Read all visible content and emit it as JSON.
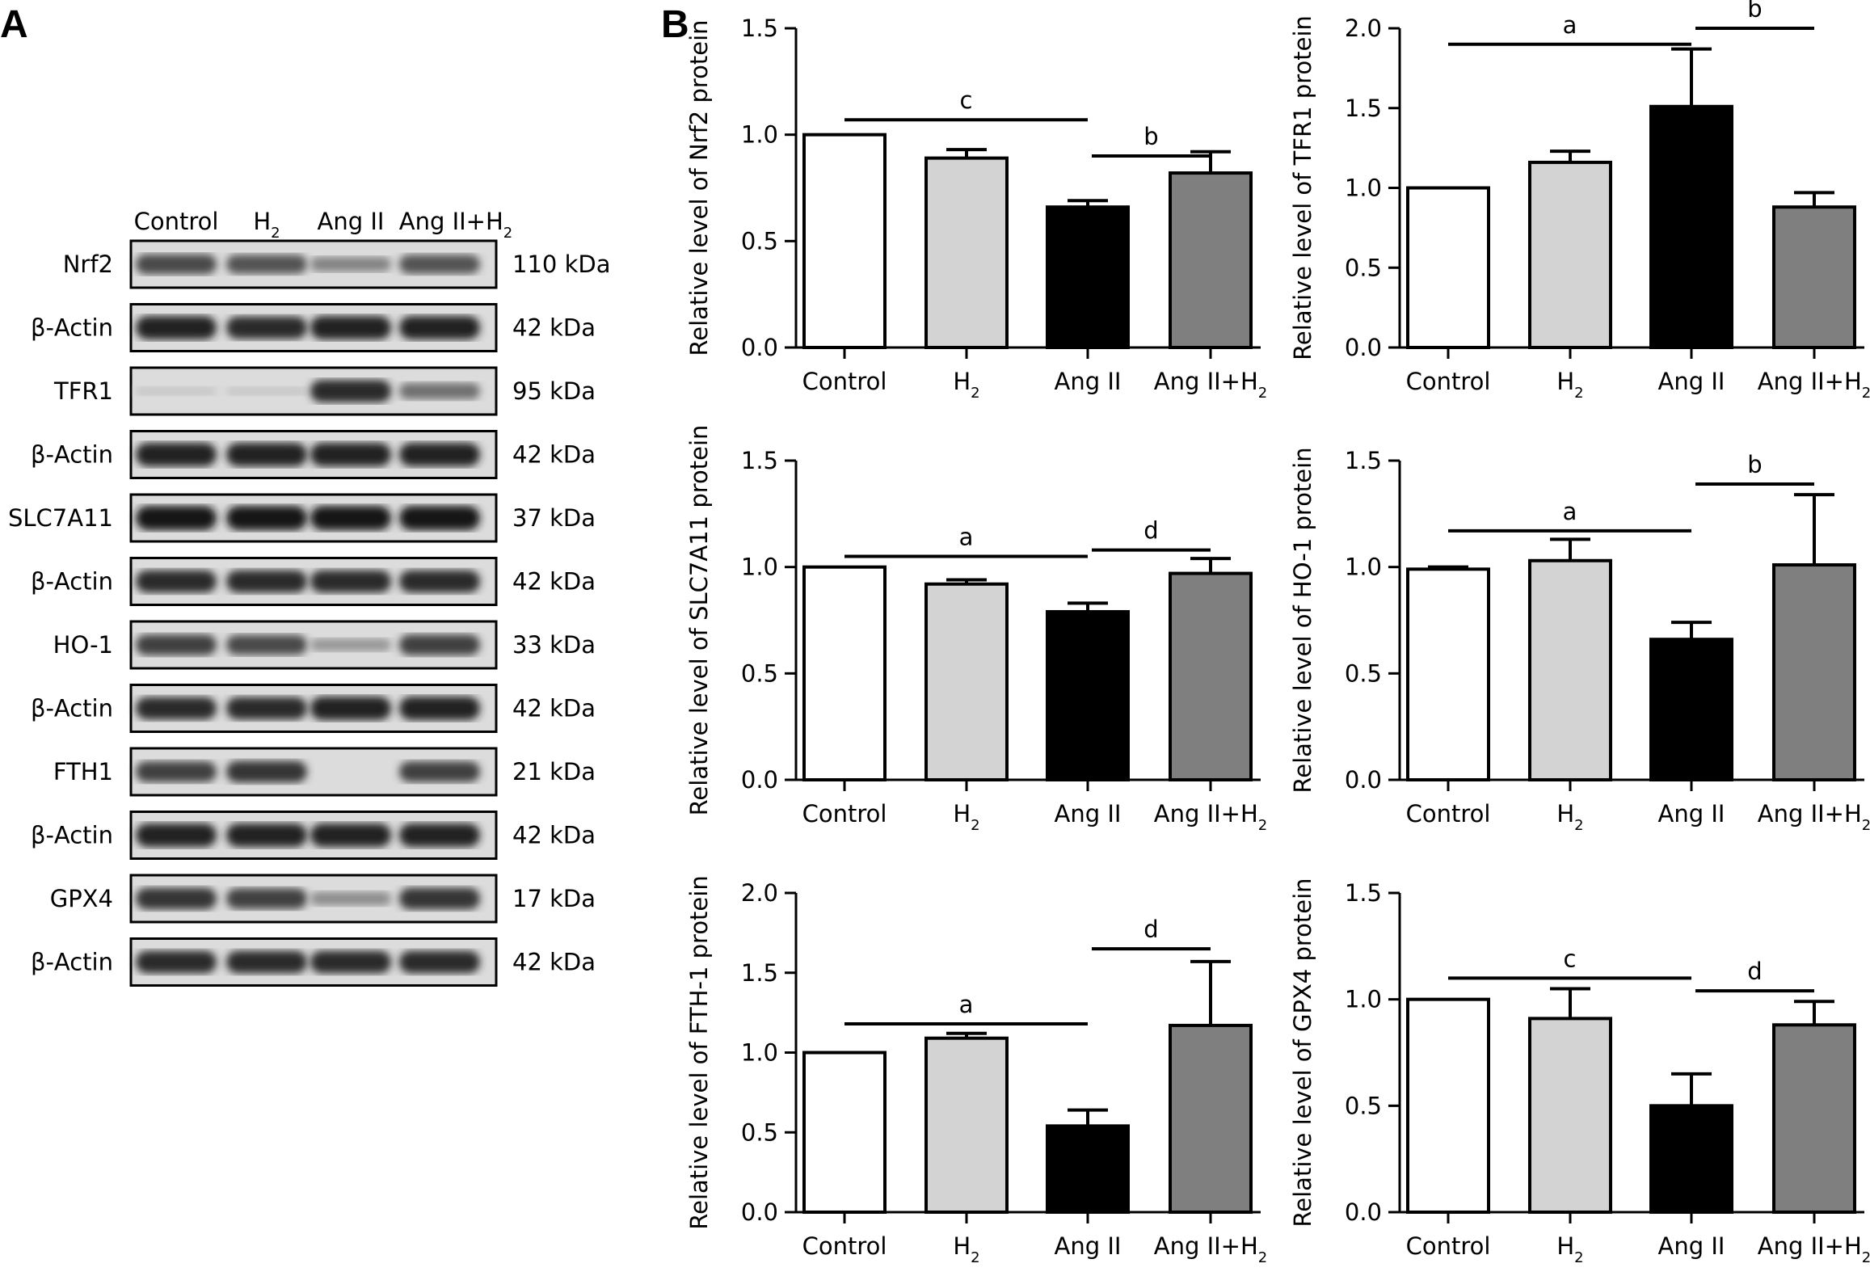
{
  "panels": {
    "a": "A",
    "b": "B"
  },
  "western_blot": {
    "lanes": [
      "Control",
      "H",
      "Ang II",
      "Ang II+H"
    ],
    "lane_subscripts": [
      "",
      "2",
      "",
      "2"
    ],
    "rows": [
      {
        "protein": "Nrf2",
        "kda": "110 kDa",
        "bands": [
          0.75,
          0.7,
          0.45,
          0.7
        ]
      },
      {
        "protein": "β-Actin",
        "kda": "42 kDa",
        "bands": [
          0.95,
          0.9,
          0.95,
          0.95
        ]
      },
      {
        "protein": "TFR1",
        "kda": "95 kDa",
        "bands": [
          0.1,
          0.1,
          0.9,
          0.55
        ]
      },
      {
        "protein": "β-Actin",
        "kda": "42 kDa",
        "bands": [
          0.95,
          0.95,
          0.95,
          0.95
        ]
      },
      {
        "protein": "SLC7A11",
        "kda": "37 kDa",
        "bands": [
          1.0,
          1.0,
          1.0,
          1.0
        ]
      },
      {
        "protein": "β-Actin",
        "kda": "42 kDa",
        "bands": [
          0.9,
          0.9,
          0.9,
          0.9
        ]
      },
      {
        "protein": "HO-1",
        "kda": "33 kDa",
        "bands": [
          0.8,
          0.75,
          0.35,
          0.8
        ]
      },
      {
        "protein": "β-Actin",
        "kda": "42 kDa",
        "bands": [
          0.9,
          0.9,
          0.95,
          0.95
        ]
      },
      {
        "protein": "FTH1",
        "kda": "21 kDa",
        "bands": [
          0.8,
          0.85,
          0.05,
          0.8
        ]
      },
      {
        "protein": "β-Actin",
        "kda": "42 kDa",
        "bands": [
          0.95,
          0.95,
          0.95,
          0.95
        ]
      },
      {
        "protein": "GPX4",
        "kda": "17 kDa",
        "bands": [
          0.85,
          0.8,
          0.4,
          0.85
        ]
      },
      {
        "protein": "β-Actin",
        "kda": "42 kDa",
        "bands": [
          0.9,
          0.9,
          0.9,
          0.9
        ]
      }
    ]
  },
  "colors": {
    "control": "#ffffff",
    "h2": "#d3d3d3",
    "angii": "#000000",
    "angii_h2": "#7f7f7f"
  },
  "chart_data": [
    {
      "type": "bar",
      "ylabel": "Relative level of Nrf2 protein",
      "categories": [
        "Control",
        "H",
        "Ang II",
        "Ang II+H"
      ],
      "category_subscripts": [
        "",
        "2",
        "",
        "2"
      ],
      "values": [
        1.0,
        0.89,
        0.66,
        0.82
      ],
      "errors": [
        0.0,
        0.04,
        0.03,
        0.1
      ],
      "ylim": [
        0,
        1.5
      ],
      "yticks": [
        "0.0",
        "0.5",
        "1.0",
        "1.5"
      ],
      "significance": [
        {
          "label": "c",
          "from": 0,
          "to": 2,
          "y": 1.07
        },
        {
          "label": "b",
          "from": 2,
          "to": 3,
          "y": 0.9
        }
      ]
    },
    {
      "type": "bar",
      "ylabel": "Relative level of TFR1 protein",
      "categories": [
        "Control",
        "H",
        "Ang II",
        "Ang II+H"
      ],
      "category_subscripts": [
        "",
        "2",
        "",
        "2"
      ],
      "values": [
        1.0,
        1.16,
        1.51,
        0.88
      ],
      "errors": [
        0.0,
        0.07,
        0.36,
        0.09
      ],
      "ylim": [
        0,
        2.0
      ],
      "yticks": [
        "0.0",
        "0.5",
        "1.0",
        "1.5",
        "2.0"
      ],
      "significance": [
        {
          "label": "a",
          "from": 0,
          "to": 2,
          "y": 1.9
        },
        {
          "label": "b",
          "from": 2,
          "to": 3,
          "y": 2.0
        }
      ]
    },
    {
      "type": "bar",
      "ylabel": "Relative level of SLC7A11 protein",
      "categories": [
        "Control",
        "H",
        "Ang II",
        "Ang II+H"
      ],
      "category_subscripts": [
        "",
        "2",
        "",
        "2"
      ],
      "values": [
        1.0,
        0.92,
        0.79,
        0.97
      ],
      "errors": [
        0.0,
        0.02,
        0.04,
        0.07
      ],
      "ylim": [
        0,
        1.5
      ],
      "yticks": [
        "0.0",
        "0.5",
        "1.0",
        "1.5"
      ],
      "significance": [
        {
          "label": "a",
          "from": 0,
          "to": 2,
          "y": 1.05
        },
        {
          "label": "d",
          "from": 2,
          "to": 3,
          "y": 1.08
        }
      ]
    },
    {
      "type": "bar",
      "ylabel": "Relative level of HO-1 protein",
      "categories": [
        "Control",
        "H",
        "Ang II",
        "Ang II+H"
      ],
      "category_subscripts": [
        "",
        "2",
        "",
        "2"
      ],
      "values": [
        0.99,
        1.03,
        0.66,
        1.01
      ],
      "errors": [
        0.01,
        0.1,
        0.08,
        0.33
      ],
      "ylim": [
        0,
        1.5
      ],
      "yticks": [
        "0.0",
        "0.5",
        "1.0",
        "1.5"
      ],
      "significance": [
        {
          "label": "a",
          "from": 0,
          "to": 2,
          "y": 1.17
        },
        {
          "label": "b",
          "from": 2,
          "to": 3,
          "y": 1.39
        }
      ]
    },
    {
      "type": "bar",
      "ylabel": "Relative level of FTH-1 protein",
      "categories": [
        "Control",
        "H",
        "Ang II",
        "Ang II+H"
      ],
      "category_subscripts": [
        "",
        "2",
        "",
        "2"
      ],
      "values": [
        1.0,
        1.09,
        0.54,
        1.17
      ],
      "errors": [
        0.0,
        0.03,
        0.1,
        0.4
      ],
      "ylim": [
        0,
        2.0
      ],
      "yticks": [
        "0.0",
        "0.5",
        "1.0",
        "1.5",
        "2.0"
      ],
      "significance": [
        {
          "label": "a",
          "from": 0,
          "to": 2,
          "y": 1.18
        },
        {
          "label": "d",
          "from": 2,
          "to": 3,
          "y": 1.65
        }
      ]
    },
    {
      "type": "bar",
      "ylabel": "Relative level of GPX4 protein",
      "categories": [
        "Control",
        "H",
        "Ang II",
        "Ang II+H"
      ],
      "category_subscripts": [
        "",
        "2",
        "",
        "2"
      ],
      "values": [
        1.0,
        0.91,
        0.5,
        0.88
      ],
      "errors": [
        0.0,
        0.14,
        0.15,
        0.11
      ],
      "ylim": [
        0,
        1.5
      ],
      "yticks": [
        "0.0",
        "0.5",
        "1.0",
        "1.5"
      ],
      "significance": [
        {
          "label": "c",
          "from": 0,
          "to": 2,
          "y": 1.1
        },
        {
          "label": "d",
          "from": 2,
          "to": 3,
          "y": 1.04
        }
      ]
    }
  ]
}
